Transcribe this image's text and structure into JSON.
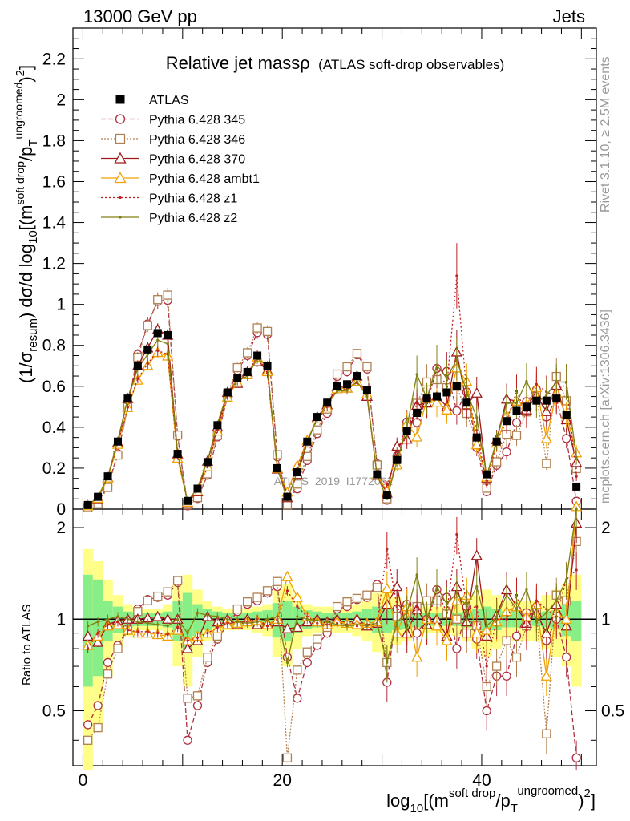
{
  "header": {
    "left": "13000 GeV pp",
    "right": "Jets"
  },
  "chart_data": {
    "type": "scatter",
    "title": "Relative jet massρ",
    "subtitle": "(ATLAS soft-drop observables)",
    "analysis_label": "ATLAS_2019_I1772062",
    "side_labels": [
      "Rivet 3.1.10, ≥ 2.5M events",
      "mcplots.cern.ch [arXiv:1306.3436]"
    ],
    "xlabel": "log10[(m^soft drop/pT^ungroomed)^2]",
    "ylabel": "(1/σresum) dσ/d log10[(m^soft drop/pT^ungroomed)^2]",
    "ratio_ylabel": "Ratio to ATLAS",
    "xlim": [
      -1,
      51.5
    ],
    "ylim": [
      0,
      2.35
    ],
    "ratio_ylim": [
      0.33,
      2.3
    ],
    "ratio_log": true,
    "x_ticks": [
      "0",
      "20",
      "40"
    ],
    "y_ticks": [
      "0",
      "0.2",
      "0.4",
      "0.6",
      "0.8",
      "1",
      "1.2",
      "1.4",
      "1.6",
      "1.8",
      "2",
      "2.2"
    ],
    "ratio_ticks": [
      "0.5",
      "1",
      "2"
    ],
    "legend_position": "top-left",
    "x": [
      0.5,
      1.5,
      2.5,
      3.5,
      4.5,
      5.5,
      6.5,
      7.5,
      8.5,
      9.5,
      10.5,
      11.5,
      12.5,
      13.5,
      14.5,
      15.5,
      16.5,
      17.5,
      18.5,
      19.5,
      20.5,
      21.5,
      22.5,
      23.5,
      24.5,
      25.5,
      26.5,
      27.5,
      28.5,
      29.5,
      30.5,
      31.5,
      32.5,
      33.5,
      34.5,
      35.5,
      36.5,
      37.5,
      38.5,
      39.5,
      40.5,
      41.5,
      42.5,
      43.5,
      44.5,
      45.5,
      46.5,
      47.5,
      48.5,
      49.5
    ],
    "data": {
      "name": "ATLAS",
      "values": [
        0.02,
        0.06,
        0.16,
        0.33,
        0.54,
        0.7,
        0.78,
        0.86,
        0.85,
        0.27,
        0.04,
        0.1,
        0.23,
        0.41,
        0.57,
        0.64,
        0.67,
        0.75,
        0.7,
        0.2,
        0.06,
        0.18,
        0.33,
        0.45,
        0.52,
        0.6,
        0.61,
        0.65,
        0.58,
        0.17,
        0.07,
        0.24,
        0.38,
        0.47,
        0.54,
        0.55,
        0.57,
        0.6,
        0.52,
        0.35,
        0.17,
        0.33,
        0.43,
        0.48,
        0.5,
        0.53,
        0.53,
        0.54,
        0.46,
        0.11
      ],
      "stat_band": [
        0.4,
        0.35,
        0.15,
        0.1,
        0.06,
        0.05,
        0.05,
        0.05,
        0.06,
        0.15,
        0.22,
        0.12,
        0.08,
        0.06,
        0.05,
        0.05,
        0.05,
        0.06,
        0.07,
        0.13,
        0.15,
        0.1,
        0.07,
        0.06,
        0.05,
        0.05,
        0.05,
        0.06,
        0.08,
        0.1,
        0.1,
        0.08,
        0.07,
        0.06,
        0.05,
        0.05,
        0.05,
        0.05,
        0.06,
        0.08,
        0.1,
        0.08,
        0.06,
        0.06,
        0.05,
        0.05,
        0.06,
        0.07,
        0.12,
        0.15
      ],
      "tot_band": [
        0.7,
        0.55,
        0.35,
        0.2,
        0.12,
        0.08,
        0.08,
        0.08,
        0.12,
        0.3,
        0.4,
        0.25,
        0.15,
        0.1,
        0.08,
        0.08,
        0.08,
        0.1,
        0.12,
        0.25,
        0.3,
        0.2,
        0.12,
        0.1,
        0.1,
        0.1,
        0.1,
        0.12,
        0.15,
        0.22,
        0.25,
        0.18,
        0.15,
        0.12,
        0.1,
        0.1,
        0.1,
        0.12,
        0.15,
        0.2,
        0.25,
        0.2,
        0.15,
        0.15,
        0.15,
        0.15,
        0.2,
        0.25,
        0.3,
        0.4
      ]
    },
    "series": [
      {
        "name": "Pythia 6.428 345",
        "color": "#b03040",
        "marker": "circle",
        "dash": "6,3",
        "ratio": [
          0.45,
          0.52,
          0.72,
          0.82,
          0.93,
          1.08,
          1.16,
          1.18,
          1.2,
          1.32,
          0.4,
          0.52,
          0.72,
          0.86,
          0.96,
          1.06,
          1.12,
          1.15,
          1.22,
          1.28,
          0.75,
          0.55,
          0.72,
          0.82,
          0.9,
          1.08,
          1.1,
          1.16,
          1.18,
          1.3,
          0.62,
          1.08,
          1.12,
          0.9,
          1.0,
          1.25,
          1.18,
          0.8,
          1.1,
          0.86,
          0.5,
          0.65,
          0.65,
          0.88,
          1.05,
          1.1,
          0.85,
          1.0,
          0.75,
          0.35
        ]
      },
      {
        "name": "Pythia 6.428 346",
        "color": "#b08050",
        "marker": "square",
        "dash": "2,2",
        "ratio": [
          0.4,
          0.44,
          0.66,
          0.8,
          0.92,
          1.06,
          1.15,
          1.19,
          1.23,
          1.34,
          0.55,
          0.56,
          0.75,
          0.88,
          0.98,
          1.08,
          1.14,
          1.18,
          1.24,
          1.33,
          0.35,
          0.68,
          0.78,
          0.86,
          0.94,
          1.1,
          1.14,
          1.17,
          1.2,
          1.27,
          0.72,
          1.02,
          1.05,
          1.1,
          1.15,
          1.15,
          1.04,
          1.0,
          0.9,
          0.95,
          0.6,
          0.7,
          0.85,
          0.75,
          0.95,
          1.06,
          0.42,
          1.2,
          1.15,
          1.8
        ]
      },
      {
        "name": "Pythia 6.428 370",
        "color": "#a01818",
        "marker": "triangle",
        "dash": "",
        "ratio": [
          0.88,
          0.84,
          0.96,
          0.99,
          1.0,
          1.0,
          1.01,
          1.02,
          1.0,
          1.0,
          0.8,
          0.85,
          1.02,
          0.98,
          1.0,
          0.96,
          1.0,
          0.96,
          0.97,
          0.98,
          0.93,
          0.94,
          0.98,
          1.0,
          0.98,
          1.0,
          0.97,
          1.0,
          0.95,
          0.97,
          1.12,
          1.28,
          0.9,
          1.08,
          0.96,
          1.0,
          0.88,
          1.28,
          0.98,
          1.62,
          0.88,
          1.03,
          1.25,
          1.1,
          0.97,
          1.05,
          0.9,
          1.12,
          0.95,
          2.07
        ]
      },
      {
        "name": "Pythia 6.428 ambt1",
        "color": "#f0a000",
        "marker": "triangle",
        "dash": "",
        "ratio": [
          0.82,
          0.88,
          0.95,
          0.96,
          0.92,
          0.9,
          0.9,
          0.89,
          0.88,
          0.92,
          0.85,
          0.88,
          0.9,
          0.93,
          0.96,
          0.97,
          0.98,
          0.99,
          0.96,
          1.0,
          1.38,
          1.18,
          1.02,
          0.98,
          0.96,
          0.98,
          0.97,
          0.96,
          0.97,
          0.98,
          1.26,
          0.9,
          1.1,
          0.75,
          1.0,
          0.95,
          0.85,
          1.15,
          1.2,
          0.9,
          0.92,
          0.98,
          1.06,
          1.1,
          1.02,
          1.12,
          0.65,
          1.05,
          1.0,
          2.5
        ]
      },
      {
        "name": "Pythia 6.428 z1",
        "color": "#c02020",
        "marker": "dot",
        "dash": "2,3",
        "ratio": [
          0.8,
          0.9,
          0.96,
          0.98,
          0.92,
          0.91,
          0.91,
          0.9,
          0.89,
          0.94,
          0.85,
          0.87,
          0.9,
          0.94,
          0.97,
          0.98,
          0.98,
          1.0,
          0.95,
          1.0,
          1.24,
          1.1,
          1.02,
          0.97,
          0.96,
          0.97,
          0.96,
          0.95,
          0.96,
          0.97,
          1.7,
          1.1,
          0.95,
          1.1,
          0.96,
          1.25,
          1.05,
          1.9,
          1.08,
          1.1,
          0.7,
          1.0,
          1.0,
          1.2,
          0.92,
          1.15,
          1.08,
          1.02,
          1.35,
          1.45
        ]
      },
      {
        "name": "Pythia 6.428 z2",
        "color": "#808010",
        "marker": "dot",
        "dash": "",
        "ratio": [
          0.95,
          0.98,
          1.0,
          1.02,
          1.0,
          0.98,
          0.97,
          0.96,
          0.95,
          1.0,
          0.9,
          1.05,
          1.03,
          1.02,
          1.0,
          0.98,
          0.97,
          0.98,
          1.0,
          1.02,
          0.72,
          1.02,
          1.0,
          0.99,
          0.98,
          0.96,
          0.95,
          0.96,
          0.95,
          0.97,
          0.72,
          0.98,
          1.05,
          1.4,
          1.0,
          1.28,
          1.12,
          1.22,
          1.1,
          1.28,
          0.95,
          1.02,
          1.2,
          1.08,
          1.25,
          0.98,
          1.05,
          1.15,
          1.35,
          2.3
        ]
      }
    ]
  }
}
